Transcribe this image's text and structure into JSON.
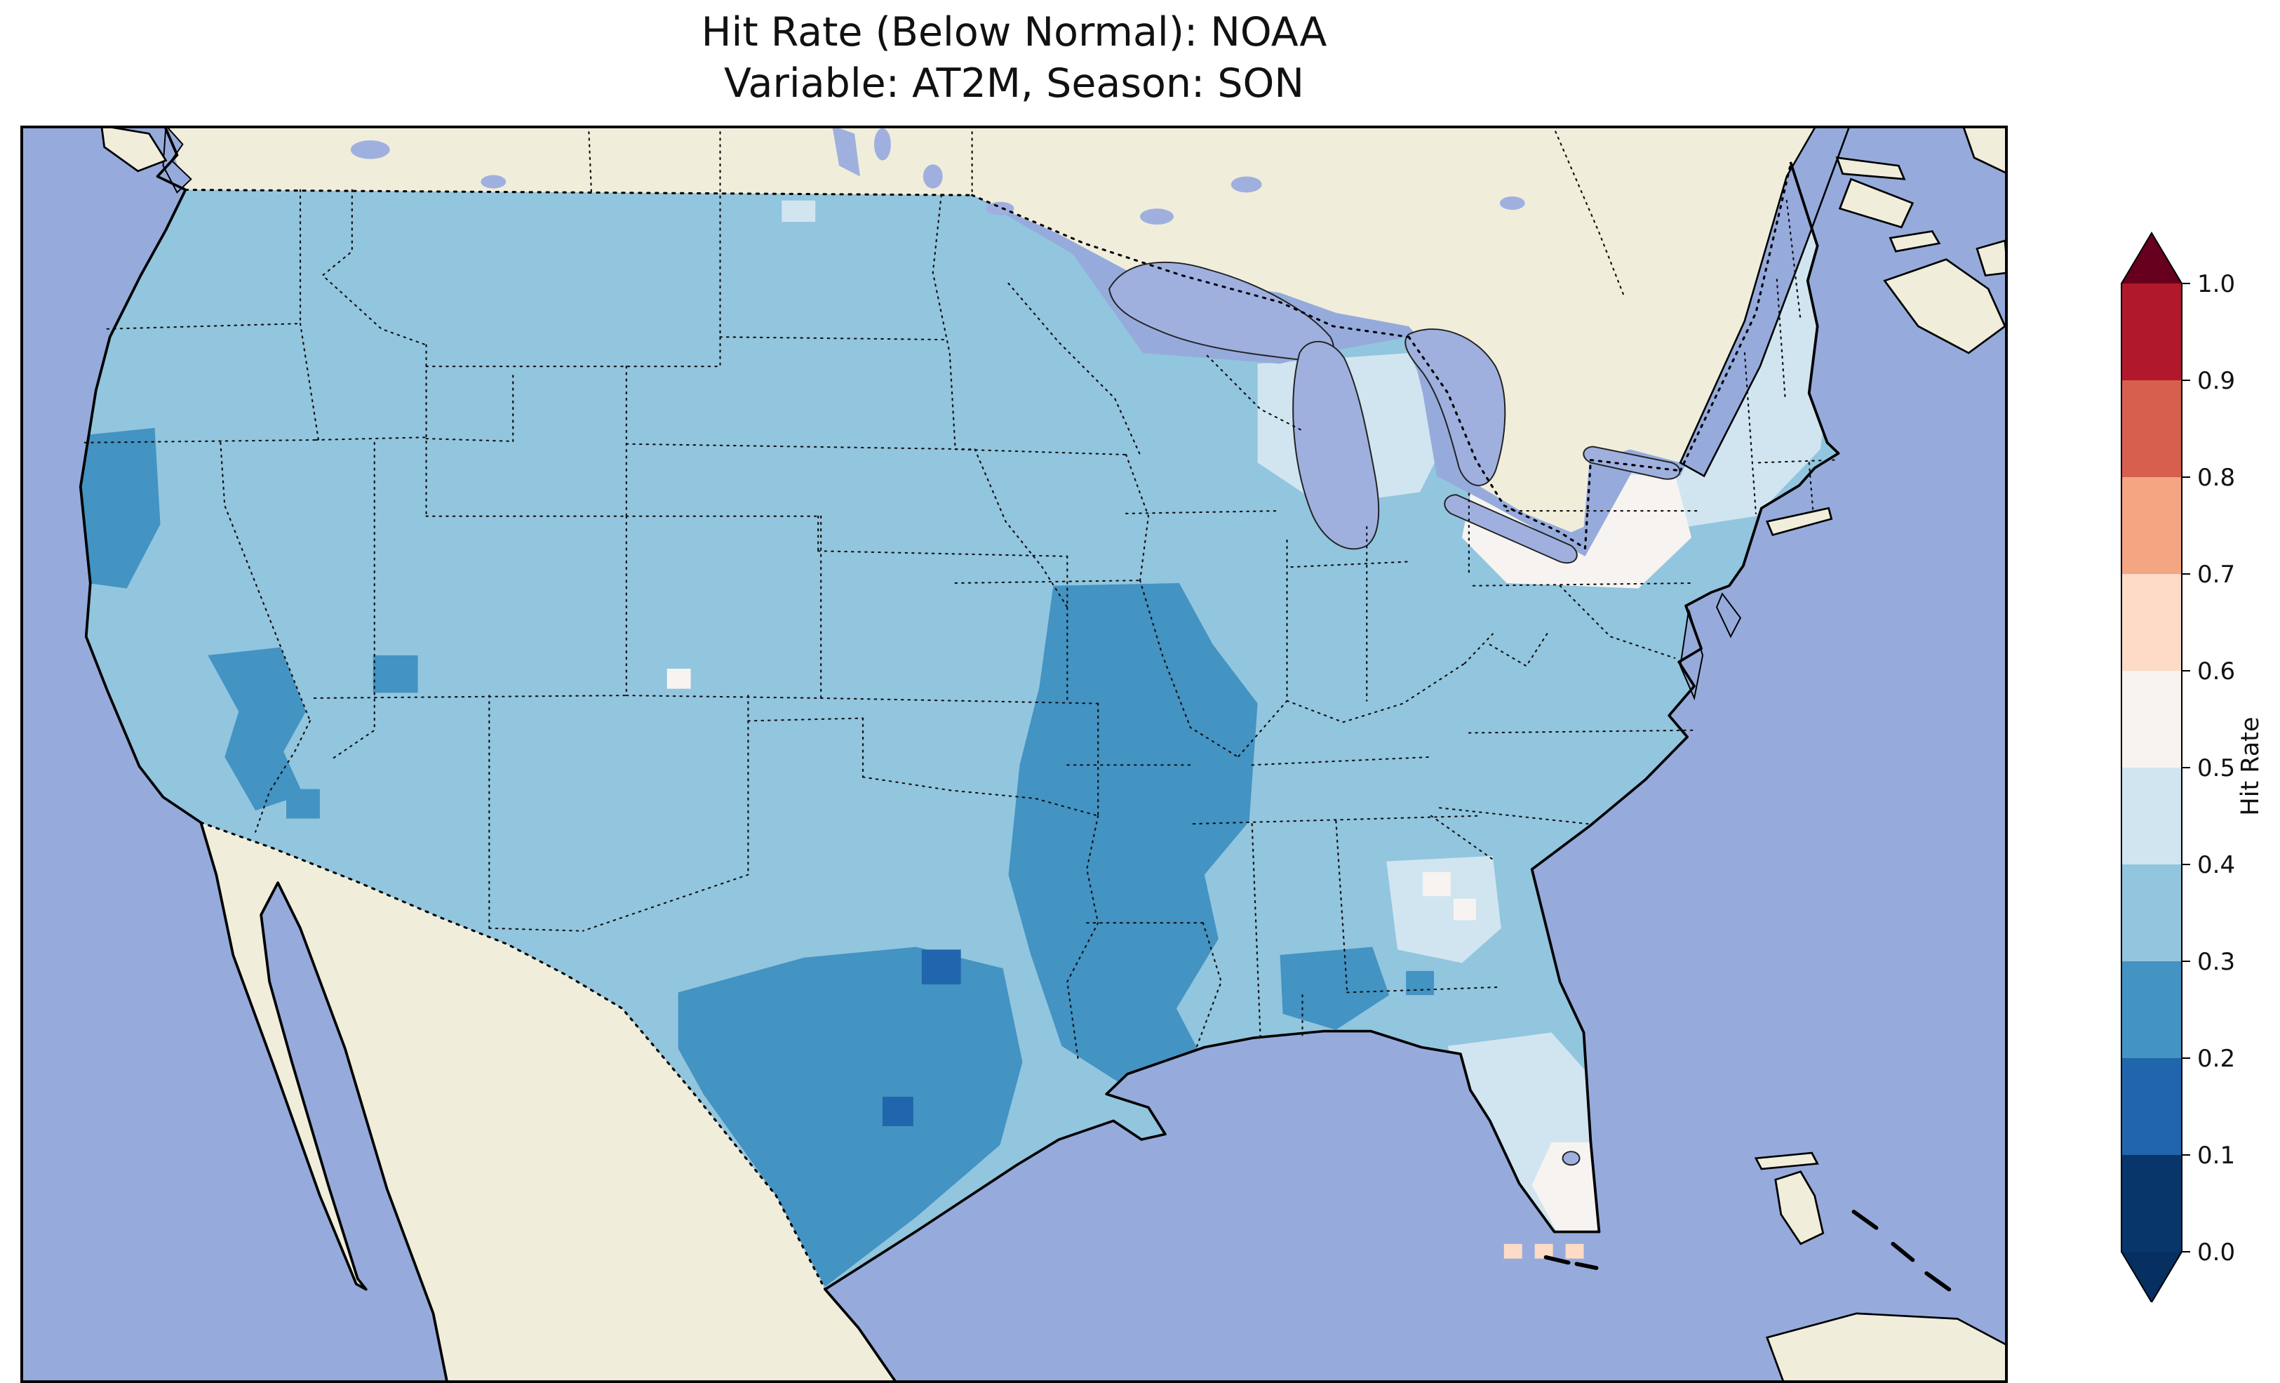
{
  "title": {
    "line1": "Hit Rate (Below Normal): NOAA",
    "line2": "Variable: AT2M, Season: SON"
  },
  "map": {
    "ocean_color": "#96abdc",
    "land_color": "#f0eedb",
    "lake_color": "#9fb0df",
    "base_fill": "#92c5de",
    "patch_colors": {
      "hit_01_02": "#2166ac",
      "hit_02_03": "#4393c3",
      "hit_04_05": "#d1e5f0",
      "hit_05_06": "#f7f3f0",
      "hit_06_07": "#fddbc7"
    }
  },
  "chart_data": {
    "type": "heatmap",
    "title": "Hit Rate (Below Normal): NOAA",
    "subtitle": "Variable: AT2M, Season: SON",
    "metric": "Hit Rate (Below Normal)",
    "dataset": "NOAA",
    "variable": "AT2M",
    "season": "SON",
    "region": "Contiguous United States",
    "colorbar": {
      "label": "Hit Rate",
      "tick_labels": [
        "1.0",
        "0.9",
        "0.8",
        "0.7",
        "0.6",
        "0.5",
        "0.4",
        "0.3",
        "0.2",
        "0.1",
        "0.0"
      ],
      "boundaries": [
        0.0,
        0.1,
        0.2,
        0.3,
        0.4,
        0.5,
        0.6,
        0.7,
        0.8,
        0.9,
        1.0
      ],
      "colors_low_to_high": [
        "#08366a",
        "#2166ac",
        "#4393c3",
        "#92c5de",
        "#d1e5f0",
        "#f7f3f0",
        "#fddbc7",
        "#f4a582",
        "#d6604d",
        "#b2182b"
      ],
      "under_color": "#053061",
      "over_color": "#67001f",
      "extend": "both",
      "legend_position": "right"
    },
    "observed_values": [
      {
        "area": "Most of the contiguous US",
        "hit_rate_range": [
          0.3,
          0.4
        ]
      },
      {
        "area": "Central and east Texas, lower Mississippi Valley, northern California coast, Nevada, central Arizona, southern Georgia/Alabama",
        "hit_rate_range": [
          0.2,
          0.3
        ]
      },
      {
        "area": "Isolated cells in central and southern Texas",
        "hit_rate_range": [
          0.1,
          0.2
        ]
      },
      {
        "area": "Northeast (New York, New England), around the western Great Lakes, Florida peninsula, parts of Georgia, one cell in North Dakota",
        "hit_rate_range": [
          0.4,
          0.5
        ]
      },
      {
        "area": "Upstate New York into northern Pennsylvania, south Florida, small spots in Georgia and Colorado",
        "hit_rate_range": [
          0.5,
          0.6
        ]
      },
      {
        "area": "A few cells near the Florida Keys",
        "hit_rate_range": [
          0.6,
          0.7
        ]
      }
    ]
  }
}
